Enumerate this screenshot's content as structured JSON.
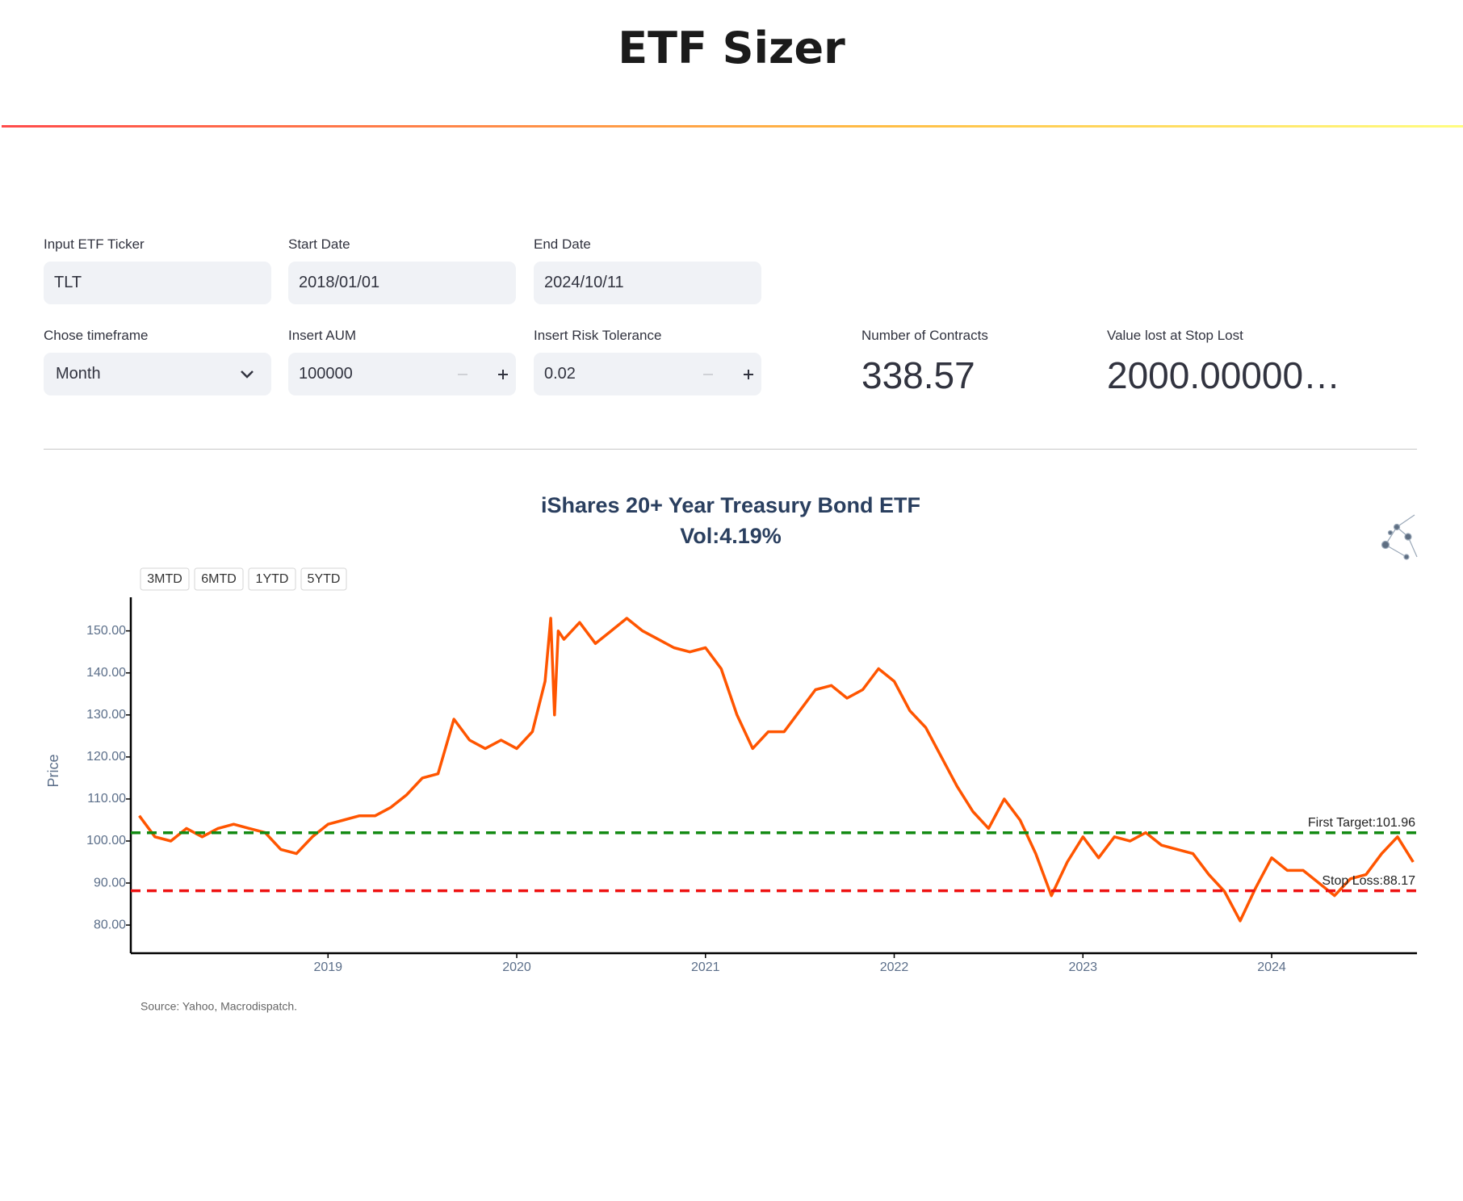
{
  "header": {
    "title": "ETF Sizer"
  },
  "inputs": [
    {
      "label": "Input ETF Ticker",
      "value": "TLT"
    },
    {
      "label": "Start Date",
      "value": "2018/01/01"
    },
    {
      "label": "End Date",
      "value": "2024/10/11"
    },
    {
      "label": "Chose timeframe",
      "value": "Month"
    },
    {
      "label": "Insert AUM",
      "value": "100000"
    },
    {
      "label": "Insert Risk Tolerance",
      "value": "0.02"
    }
  ],
  "metrics": [
    {
      "label": "Number of Contracts",
      "value": "338.57"
    },
    {
      "label": "Value lost at Stop Lost",
      "value": "2000.00000…"
    }
  ],
  "chart_data": {
    "type": "line",
    "title": "iShares 20+ Year Treasury Bond ETF",
    "subtitle": "Vol:4.19%",
    "y_label": "Price",
    "source": "Source: Yahoo, Macrodispatch.",
    "range_buttons": [
      "3MTD",
      "6MTD",
      "1YTD",
      "5YTD"
    ],
    "xlim": [
      2017.955,
      2024.77
    ],
    "ylim": [
      73.3,
      158
    ],
    "xticks": [
      2019,
      2020,
      2021,
      2022,
      2023,
      2024
    ],
    "yticks": [
      {
        "value": 80,
        "label": "80.00"
      },
      {
        "value": 90,
        "label": "90.00"
      },
      {
        "value": 100,
        "label": "100.00"
      },
      {
        "value": 110,
        "label": "110.00"
      },
      {
        "value": 120,
        "label": "120.00"
      },
      {
        "value": 130,
        "label": "130.00"
      },
      {
        "value": 140,
        "label": "140.00"
      },
      {
        "value": 150,
        "label": "150.00"
      }
    ],
    "x": [
      2018.0,
      2018.083,
      2018.167,
      2018.25,
      2018.333,
      2018.417,
      2018.5,
      2018.583,
      2018.667,
      2018.75,
      2018.833,
      2018.917,
      2019.0,
      2019.083,
      2019.167,
      2019.25,
      2019.333,
      2019.417,
      2019.5,
      2019.583,
      2019.667,
      2019.75,
      2019.833,
      2019.917,
      2020.0,
      2020.083,
      2020.15,
      2020.18,
      2020.2,
      2020.22,
      2020.25,
      2020.333,
      2020.417,
      2020.5,
      2020.583,
      2020.667,
      2020.75,
      2020.833,
      2020.917,
      2021.0,
      2021.083,
      2021.167,
      2021.25,
      2021.333,
      2021.417,
      2021.5,
      2021.583,
      2021.667,
      2021.75,
      2021.833,
      2021.917,
      2022.0,
      2022.083,
      2022.167,
      2022.25,
      2022.333,
      2022.417,
      2022.5,
      2022.583,
      2022.667,
      2022.75,
      2022.833,
      2022.917,
      2023.0,
      2023.083,
      2023.167,
      2023.25,
      2023.333,
      2023.417,
      2023.5,
      2023.583,
      2023.667,
      2023.75,
      2023.833,
      2023.917,
      2024.0,
      2024.083,
      2024.167,
      2024.25,
      2024.333,
      2024.417,
      2024.5,
      2024.583,
      2024.667,
      2024.75
    ],
    "series": [
      {
        "name": "TLT",
        "color": "#ff5500",
        "values": [
          106,
          101,
          100,
          103,
          101,
          103,
          104,
          103,
          102,
          98,
          97,
          101,
          104,
          105,
          106,
          106,
          108,
          111,
          115,
          116,
          129,
          124,
          122,
          124,
          122,
          126,
          138,
          153,
          130,
          150,
          148,
          152,
          147,
          150,
          153,
          150,
          148,
          146,
          145,
          146,
          141,
          130,
          122,
          126,
          126,
          131,
          136,
          137,
          134,
          136,
          141,
          138,
          131,
          127,
          120,
          113,
          107,
          103,
          110,
          105,
          97,
          87,
          95,
          101,
          96,
          101,
          100,
          102,
          99,
          98,
          97,
          92,
          88,
          81,
          89,
          96,
          93,
          93,
          90,
          87,
          91,
          92,
          97,
          101,
          95
        ]
      }
    ],
    "hlines": [
      {
        "name": "First Target",
        "value": 101.96,
        "label": "First Target:101.96",
        "color": "#138a13"
      },
      {
        "name": "Stop Loss",
        "value": 88.17,
        "label": "Stop Loss:88.17",
        "color": "#ee1111"
      }
    ]
  }
}
